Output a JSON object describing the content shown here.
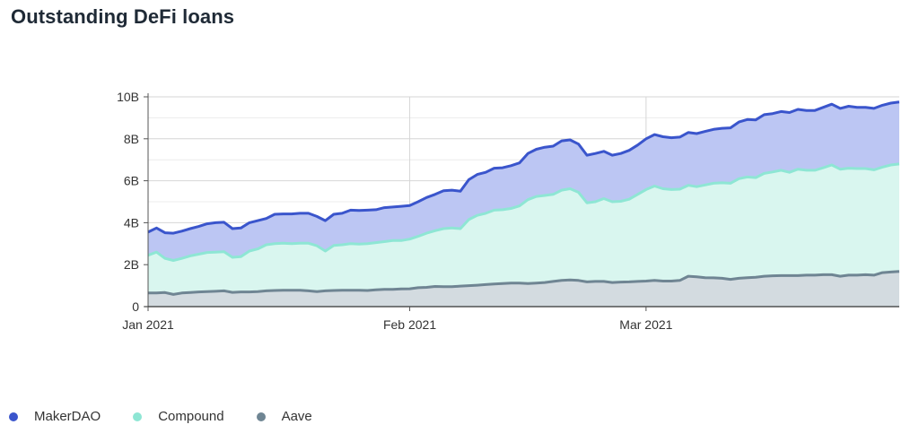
{
  "title": "Outstanding DeFi loans",
  "chart_data": {
    "type": "area",
    "title": "Outstanding DeFi loans",
    "stacked": false,
    "xlabel": "",
    "ylabel": "",
    "ylim": [
      0,
      10
    ],
    "yticks": [
      0,
      2,
      4,
      6,
      8,
      10
    ],
    "ytick_labels": [
      "0",
      "2B",
      "4B",
      "6B",
      "8B",
      "10B"
    ],
    "x_start": "2021-01-01",
    "x_end": "2021-03-31",
    "xticks": [
      {
        "day": 0,
        "label": "Jan 2021"
      },
      {
        "day": 31,
        "label": "Feb 2021"
      },
      {
        "day": 59,
        "label": "Mar 2021"
      }
    ],
    "grid": true,
    "legend_position": "bottom-left",
    "colors": {
      "MakerDAO": {
        "line": "#3a55cc",
        "fill": "#bcc6f3"
      },
      "Compound": {
        "line": "#8ee6d4",
        "fill": "#d9f6ef"
      },
      "Aave": {
        "line": "#6f8593",
        "fill": "#d3dbe0"
      }
    },
    "series": [
      {
        "name": "MakerDAO",
        "x": [
          0,
          1,
          2,
          3,
          4,
          5,
          6,
          7,
          8,
          9,
          10,
          11,
          12,
          13,
          14,
          15,
          16,
          17,
          18,
          19,
          20,
          21,
          22,
          23,
          24,
          25,
          26,
          27,
          28,
          29,
          30,
          31,
          32,
          33,
          34,
          35,
          36,
          37,
          38,
          39,
          40,
          41,
          42,
          43,
          44,
          45,
          46,
          47,
          48,
          49,
          50,
          51,
          52,
          53,
          54,
          55,
          56,
          57,
          58,
          59,
          60,
          61,
          62,
          63,
          64,
          65,
          66,
          67,
          68,
          69,
          70,
          71,
          72,
          73,
          74,
          75,
          76,
          77,
          78,
          79,
          80,
          81,
          82,
          83,
          84,
          85,
          86,
          87,
          88,
          89
        ],
        "values": [
          3.55,
          3.75,
          3.52,
          3.5,
          3.6,
          3.72,
          3.82,
          3.95,
          4.0,
          4.02,
          3.72,
          3.75,
          4.0,
          4.1,
          4.2,
          4.4,
          4.42,
          4.42,
          4.45,
          4.45,
          4.3,
          4.1,
          4.4,
          4.45,
          4.6,
          4.58,
          4.6,
          4.62,
          4.72,
          4.75,
          4.78,
          4.82,
          5.0,
          5.2,
          5.35,
          5.52,
          5.55,
          5.5,
          6.05,
          6.3,
          6.4,
          6.6,
          6.62,
          6.72,
          6.85,
          7.3,
          7.5,
          7.6,
          7.65,
          7.9,
          7.95,
          7.75,
          7.22,
          7.3,
          7.4,
          7.22,
          7.3,
          7.45,
          7.7,
          8.0,
          8.2,
          8.1,
          8.05,
          8.08,
          8.3,
          8.25,
          8.35,
          8.45,
          8.5,
          8.52,
          8.8,
          8.92,
          8.9,
          9.15,
          9.2,
          9.3,
          9.25,
          9.4,
          9.35,
          9.35,
          9.5,
          9.65,
          9.45,
          9.55,
          9.5,
          9.5,
          9.45,
          9.6,
          9.7,
          9.75
        ]
      },
      {
        "name": "Compound",
        "x": [
          0,
          1,
          2,
          3,
          4,
          5,
          6,
          7,
          8,
          9,
          10,
          11,
          12,
          13,
          14,
          15,
          16,
          17,
          18,
          19,
          20,
          21,
          22,
          23,
          24,
          25,
          26,
          27,
          28,
          29,
          30,
          31,
          32,
          33,
          34,
          35,
          36,
          37,
          38,
          39,
          40,
          41,
          42,
          43,
          44,
          45,
          46,
          47,
          48,
          49,
          50,
          51,
          52,
          53,
          54,
          55,
          56,
          57,
          58,
          59,
          60,
          61,
          62,
          63,
          64,
          65,
          66,
          67,
          68,
          69,
          70,
          71,
          72,
          73,
          74,
          75,
          76,
          77,
          78,
          79,
          80,
          81,
          82,
          83,
          84,
          85,
          86,
          87,
          88,
          89
        ],
        "values": [
          2.45,
          2.6,
          2.3,
          2.2,
          2.3,
          2.42,
          2.5,
          2.58,
          2.6,
          2.62,
          2.35,
          2.38,
          2.65,
          2.75,
          2.95,
          3.0,
          3.02,
          3.0,
          3.02,
          3.02,
          2.9,
          2.65,
          2.92,
          2.95,
          3.0,
          2.98,
          3.0,
          3.05,
          3.1,
          3.15,
          3.15,
          3.22,
          3.35,
          3.5,
          3.62,
          3.72,
          3.75,
          3.72,
          4.15,
          4.35,
          4.45,
          4.6,
          4.62,
          4.68,
          4.8,
          5.1,
          5.25,
          5.3,
          5.35,
          5.55,
          5.62,
          5.45,
          4.95,
          5.0,
          5.15,
          5.0,
          5.02,
          5.12,
          5.35,
          5.58,
          5.75,
          5.62,
          5.58,
          5.6,
          5.78,
          5.72,
          5.8,
          5.88,
          5.9,
          5.88,
          6.1,
          6.18,
          6.15,
          6.35,
          6.42,
          6.5,
          6.4,
          6.55,
          6.5,
          6.5,
          6.62,
          6.75,
          6.55,
          6.6,
          6.58,
          6.58,
          6.52,
          6.65,
          6.75,
          6.8
        ]
      },
      {
        "name": "Aave",
        "x": [
          0,
          1,
          2,
          3,
          4,
          5,
          6,
          7,
          8,
          9,
          10,
          11,
          12,
          13,
          14,
          15,
          16,
          17,
          18,
          19,
          20,
          21,
          22,
          23,
          24,
          25,
          26,
          27,
          28,
          29,
          30,
          31,
          32,
          33,
          34,
          35,
          36,
          37,
          38,
          39,
          40,
          41,
          42,
          43,
          44,
          45,
          46,
          47,
          48,
          49,
          50,
          51,
          52,
          53,
          54,
          55,
          56,
          57,
          58,
          59,
          60,
          61,
          62,
          63,
          64,
          65,
          66,
          67,
          68,
          69,
          70,
          71,
          72,
          73,
          74,
          75,
          76,
          77,
          78,
          79,
          80,
          81,
          82,
          83,
          84,
          85,
          86,
          87,
          88,
          89
        ],
        "values": [
          0.65,
          0.65,
          0.67,
          0.58,
          0.65,
          0.67,
          0.7,
          0.72,
          0.73,
          0.75,
          0.68,
          0.7,
          0.7,
          0.72,
          0.75,
          0.77,
          0.78,
          0.78,
          0.78,
          0.75,
          0.72,
          0.75,
          0.77,
          0.78,
          0.78,
          0.78,
          0.77,
          0.8,
          0.82,
          0.82,
          0.84,
          0.85,
          0.9,
          0.92,
          0.96,
          0.95,
          0.95,
          0.98,
          1.0,
          1.02,
          1.05,
          1.08,
          1.1,
          1.12,
          1.12,
          1.1,
          1.12,
          1.15,
          1.2,
          1.25,
          1.27,
          1.25,
          1.18,
          1.2,
          1.2,
          1.15,
          1.17,
          1.18,
          1.2,
          1.22,
          1.25,
          1.22,
          1.22,
          1.25,
          1.45,
          1.42,
          1.38,
          1.37,
          1.35,
          1.3,
          1.35,
          1.38,
          1.4,
          1.45,
          1.47,
          1.48,
          1.48,
          1.48,
          1.5,
          1.5,
          1.52,
          1.52,
          1.45,
          1.5,
          1.5,
          1.52,
          1.5,
          1.62,
          1.65,
          1.68
        ]
      }
    ]
  }
}
